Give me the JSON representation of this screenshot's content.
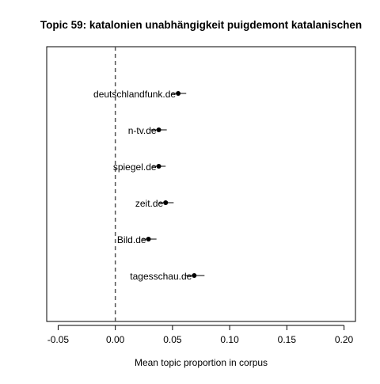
{
  "chart_data": {
    "type": "scatter",
    "title": "Topic 59: katalonien unabhängigkeit puigdemont katalanischen",
    "xlabel": "Mean topic proportion in corpus",
    "ylabel": "",
    "xlim": [
      -0.06,
      0.21
    ],
    "x_ticks": [
      -0.05,
      0.0,
      0.05,
      0.1,
      0.15,
      0.2
    ],
    "x_tick_labels": [
      "-0.05",
      "0.00",
      "0.05",
      "0.10",
      "0.15",
      "0.20"
    ],
    "reference_line_x": 0.0,
    "reference_line_style": "dashed",
    "grid": false,
    "legend": "none",
    "points": [
      {
        "label": "deutschlandfunk.de",
        "x": 0.055,
        "lower": 0.049,
        "upper": 0.062
      },
      {
        "label": "n-tv.de",
        "x": 0.038,
        "lower": 0.031,
        "upper": 0.045
      },
      {
        "label": "spiegel.de",
        "x": 0.038,
        "lower": 0.032,
        "upper": 0.044
      },
      {
        "label": "zeit.de",
        "x": 0.044,
        "lower": 0.038,
        "upper": 0.051
      },
      {
        "label": "Bild.de",
        "x": 0.029,
        "lower": 0.023,
        "upper": 0.036
      },
      {
        "label": "tagesschau.de",
        "x": 0.069,
        "lower": 0.061,
        "upper": 0.078
      }
    ]
  }
}
